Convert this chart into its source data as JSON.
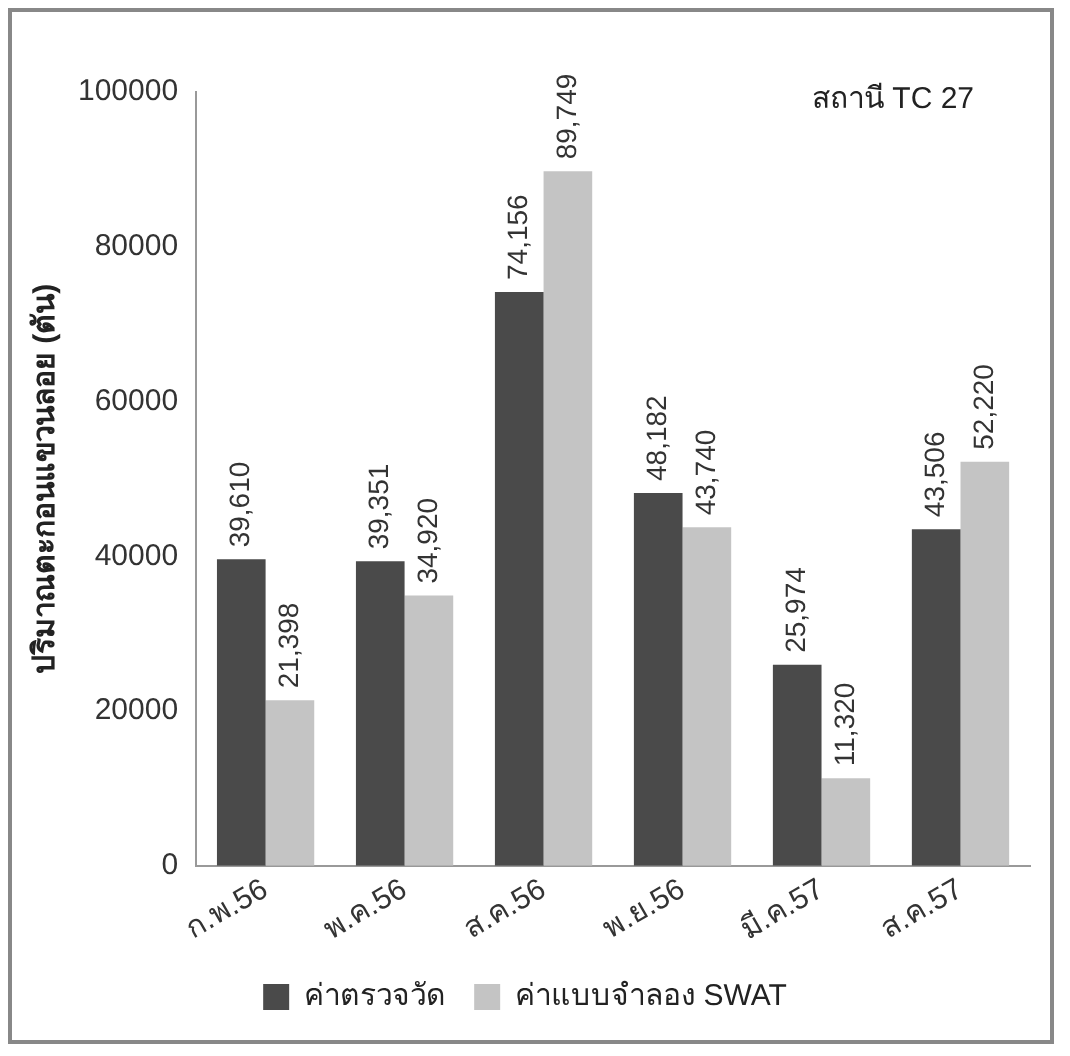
{
  "chart_data": {
    "type": "bar",
    "ylabel": "ปริมาณตะกอนแขวนลอย (ตัน)",
    "annotations": [
      "สถานี TC 27"
    ],
    "categories": [
      "ก.พ.56",
      "พ.ค.56",
      "ส.ค.56",
      "พ.ย.56",
      "มี.ค.57",
      "ส.ค.57"
    ],
    "series": [
      {
        "name": "ค่าตรวจวัด",
        "color": "#4a4a4a",
        "values": [
          39610,
          39351,
          74156,
          48182,
          25974,
          43506
        ],
        "value_labels": [
          "39,610",
          "39,351",
          "74,156",
          "48,182",
          "25,974",
          "43,506"
        ]
      },
      {
        "name": "ค่าแบบจำลอง SWAT",
        "color": "#c4c4c4",
        "values": [
          21398,
          34920,
          89749,
          43740,
          11320,
          52220
        ],
        "value_labels": [
          "21,398",
          "34,920",
          "89,749",
          "43,740",
          "11,320",
          "52,220"
        ]
      }
    ],
    "ylim": [
      0,
      100000
    ],
    "yticks": [
      0,
      20000,
      40000,
      60000,
      80000,
      100000
    ],
    "grid": false,
    "legend": "bottom"
  }
}
